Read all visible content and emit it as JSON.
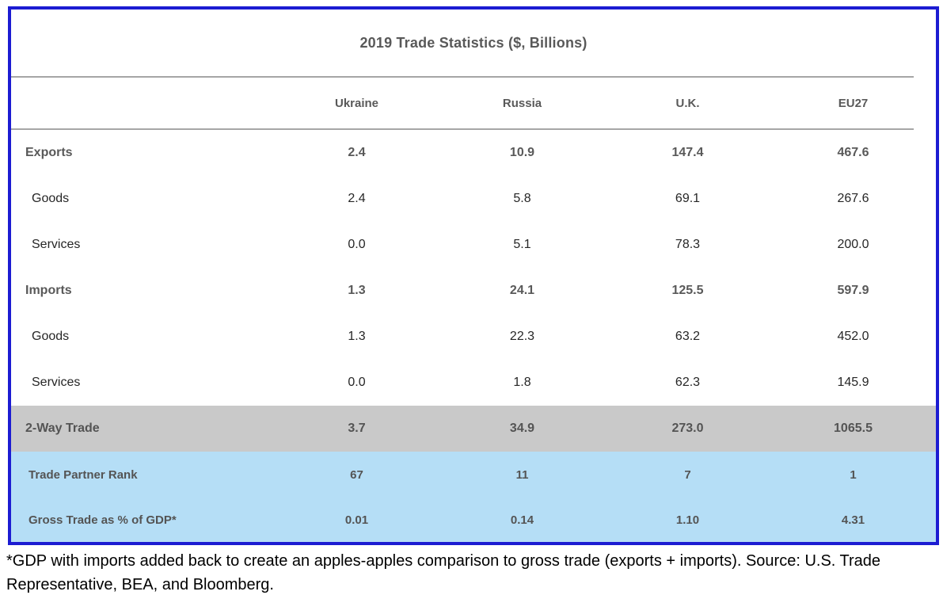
{
  "chart_data": {
    "type": "table",
    "title": "2019 Trade Statistics ($, Billions)",
    "columns": [
      "Ukraine",
      "Russia",
      "U.K.",
      "EU27"
    ],
    "rows": [
      {
        "label": "Exports",
        "emphasis": "bold",
        "band": "none",
        "values": [
          "2.4",
          "10.9",
          "147.4",
          "467.6"
        ]
      },
      {
        "label": "Goods",
        "emphasis": "normal",
        "band": "none",
        "values": [
          "2.4",
          "5.8",
          "69.1",
          "267.6"
        ]
      },
      {
        "label": "Services",
        "emphasis": "normal",
        "band": "none",
        "values": [
          "0.0",
          "5.1",
          "78.3",
          "200.0"
        ]
      },
      {
        "label": "Imports",
        "emphasis": "bold",
        "band": "none",
        "values": [
          "1.3",
          "24.1",
          "125.5",
          "597.9"
        ]
      },
      {
        "label": "Goods",
        "emphasis": "normal",
        "band": "none",
        "values": [
          "1.3",
          "22.3",
          "63.2",
          "452.0"
        ]
      },
      {
        "label": "Services",
        "emphasis": "normal",
        "band": "none",
        "values": [
          "0.0",
          "1.8",
          "62.3",
          "145.9"
        ]
      },
      {
        "label": "2-Way Trade",
        "emphasis": "bold",
        "band": "gray",
        "values": [
          "3.7",
          "34.9",
          "273.0",
          "1065.5"
        ]
      },
      {
        "label": "Trade Partner Rank",
        "emphasis": "bold",
        "band": "blue",
        "values": [
          "67",
          "11",
          "7",
          "1"
        ]
      },
      {
        "label": "Gross Trade as % of GDP*",
        "emphasis": "bold",
        "band": "blue",
        "values": [
          "0.01",
          "0.14",
          "1.10",
          "4.31"
        ]
      }
    ],
    "footnote": "*GDP with imports added back to create an apples-apples comparison to gross trade (exports + imports). Source: U.S. Trade Representative, BEA, and Bloomberg.",
    "layout": {
      "grid": "off",
      "header_separators": true
    }
  },
  "colors": {
    "border_blue": "#1c1cd2",
    "gray_band": "#c9c9c9",
    "blue_band": "#b5def6",
    "bold_text": "#595959",
    "body_text": "#262626",
    "separator_line": "#a6a6a6",
    "footnote_text": "#000000"
  }
}
